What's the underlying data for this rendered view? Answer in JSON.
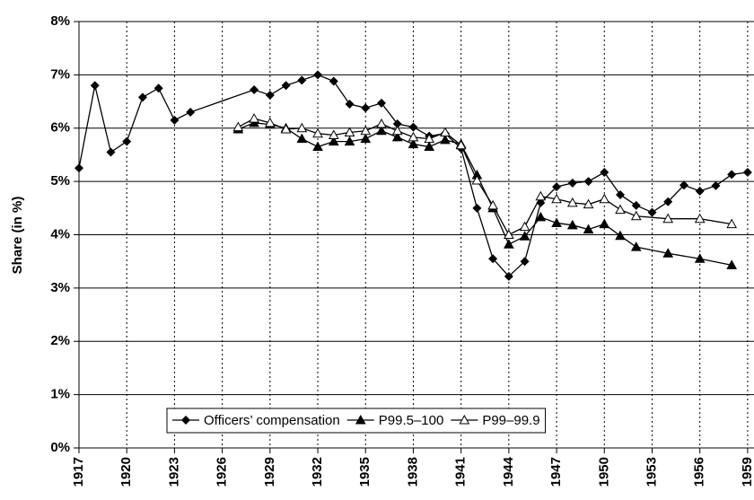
{
  "chart_data": {
    "type": "line",
    "y_label": "Share (in %)",
    "xlim": [
      1917,
      1959.4
    ],
    "xticks": [
      1917,
      1920,
      1923,
      1926,
      1929,
      1932,
      1935,
      1938,
      1941,
      1944,
      1947,
      1950,
      1953,
      1956,
      1959
    ],
    "ylim": [
      0,
      8
    ],
    "yticks": [
      {
        "value": 0,
        "label": "0%"
      },
      {
        "value": 1,
        "label": "1%"
      },
      {
        "value": 2,
        "label": "2%"
      },
      {
        "value": 3,
        "label": "3%"
      },
      {
        "value": 4,
        "label": "4%"
      },
      {
        "value": 5,
        "label": "5%"
      },
      {
        "value": 6,
        "label": "6%"
      },
      {
        "value": 7,
        "label": "7%"
      },
      {
        "value": 8,
        "label": "8%"
      }
    ],
    "grid": true,
    "legend": "bottom",
    "series": [
      {
        "name": "Officers’ compensation",
        "color": "#000000",
        "marker": "diamond",
        "x": [
          1917,
          1918,
          1919,
          1920,
          1921,
          1922,
          1923,
          1924,
          1928,
          1929,
          1930,
          1931,
          1932,
          1933,
          1934,
          1935,
          1936,
          1937,
          1938,
          1939,
          1940,
          1941,
          1942,
          1943,
          1944,
          1945,
          1946,
          1947,
          1948,
          1949,
          1950,
          1951,
          1952,
          1953,
          1954,
          1955,
          1956,
          1957,
          1958,
          1959
        ],
        "values": [
          5.25,
          6.8,
          5.55,
          5.75,
          6.58,
          6.75,
          6.15,
          6.3,
          6.72,
          6.62,
          6.8,
          6.9,
          7.0,
          6.88,
          6.45,
          6.38,
          6.47,
          6.08,
          6.02,
          5.85,
          5.9,
          5.62,
          4.5,
          3.55,
          3.22,
          3.5,
          4.6,
          4.9,
          4.97,
          5.0,
          5.17,
          4.75,
          4.55,
          4.42,
          4.62,
          4.93,
          4.82,
          4.92,
          5.13,
          5.17
        ]
      },
      {
        "name": "P99.5–100",
        "color": "#000000",
        "marker": "triangle",
        "x": [
          1927,
          1928,
          1929,
          1930,
          1931,
          1932,
          1933,
          1934,
          1935,
          1936,
          1937,
          1938,
          1939,
          1940,
          1941,
          1942,
          1943,
          1944,
          1945,
          1946,
          1947,
          1948,
          1949,
          1950,
          1951,
          1952,
          1954,
          1956,
          1958
        ],
        "values": [
          5.98,
          6.1,
          6.07,
          6.0,
          5.8,
          5.65,
          5.75,
          5.75,
          5.8,
          5.95,
          5.83,
          5.7,
          5.65,
          5.78,
          5.7,
          5.12,
          4.5,
          3.82,
          3.97,
          4.33,
          4.22,
          4.18,
          4.1,
          4.2,
          3.98,
          3.77,
          3.65,
          3.55,
          3.43
        ]
      },
      {
        "name": "P99–99.9",
        "color": "#000000",
        "marker": "open-triangle",
        "x": [
          1927,
          1928,
          1929,
          1930,
          1931,
          1932,
          1933,
          1934,
          1935,
          1936,
          1937,
          1938,
          1939,
          1940,
          1941,
          1942,
          1943,
          1944,
          1945,
          1946,
          1947,
          1948,
          1949,
          1950,
          1951,
          1952,
          1954,
          1956,
          1958
        ],
        "values": [
          6.02,
          6.18,
          6.1,
          5.98,
          6.0,
          5.9,
          5.87,
          5.92,
          5.95,
          6.08,
          5.95,
          5.83,
          5.8,
          5.92,
          5.68,
          5.02,
          4.55,
          4.0,
          4.15,
          4.72,
          4.67,
          4.6,
          4.57,
          4.67,
          4.47,
          4.35,
          4.3,
          4.3,
          4.2
        ]
      }
    ]
  }
}
